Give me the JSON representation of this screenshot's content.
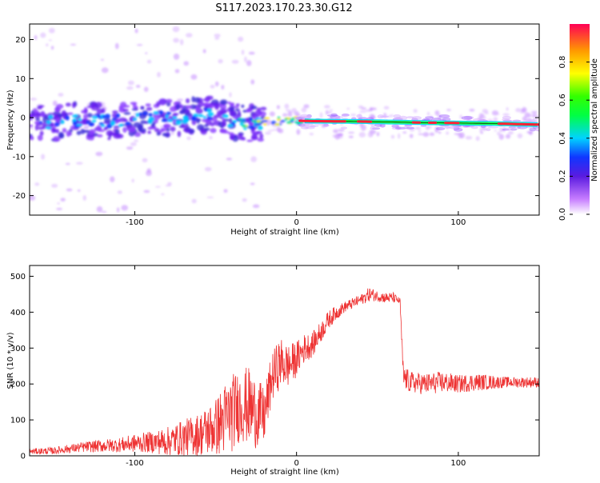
{
  "title": "S117.2023.170.23.30.G12",
  "chart_data": [
    {
      "type": "heatmap",
      "xlabel": "Height of straight line (km)",
      "ylabel": "Frequency (Hz)",
      "xlim": [
        -165,
        150
      ],
      "ylim": [
        -25,
        24
      ],
      "xticks": [
        "-100",
        "0",
        "100"
      ],
      "yticks": [
        "-20",
        "-10",
        "0",
        "10",
        "20"
      ],
      "colorbar": {
        "label": "Normalized spectral amplitude",
        "ticks": [
          "0.0",
          "0.2",
          "0.4",
          "0.6",
          "0.8"
        ],
        "range": [
          0,
          1
        ]
      },
      "ridge": [
        {
          "x": -160,
          "f": -1.5
        },
        {
          "x": -140,
          "f": -1
        },
        {
          "x": -120,
          "f": -1
        },
        {
          "x": -100,
          "f": -0.5
        },
        {
          "x": -80,
          "f": 0
        },
        {
          "x": -60,
          "f": 0.5
        },
        {
          "x": -48,
          "f": 1
        },
        {
          "x": -40,
          "f": -1
        },
        {
          "x": -30,
          "f": -1.5
        },
        {
          "x": -15,
          "f": -1
        },
        {
          "x": 0,
          "f": -0.8
        },
        {
          "x": 10,
          "f": -0.9
        },
        {
          "x": 40,
          "f": -1
        },
        {
          "x": 80,
          "f": -1.3
        },
        {
          "x": 120,
          "f": -1.5
        },
        {
          "x": 150,
          "f": -1.8
        }
      ],
      "grid": false
    },
    {
      "type": "line",
      "xlabel": "Height of straight line (km)",
      "ylabel": "SNR (10 * v/v)",
      "xlim": [
        -165,
        150
      ],
      "ylim": [
        0,
        530
      ],
      "xticks": [
        "-100",
        "0",
        "100"
      ],
      "yticks": [
        "0",
        "100",
        "200",
        "300",
        "400",
        "500"
      ],
      "series": [
        {
          "color": "#ee3333",
          "x": [
            -165,
            -150,
            -140,
            -130,
            -120,
            -110,
            -100,
            -90,
            -80,
            -70,
            -60,
            -50,
            -45,
            -40,
            -35,
            -30,
            -25,
            -20,
            -15,
            -10,
            -5,
            0,
            5,
            10,
            15,
            20,
            25,
            30,
            35,
            40,
            45,
            50,
            55,
            60,
            62,
            64,
            66,
            70,
            80,
            90,
            100,
            110,
            120,
            130,
            140,
            150
          ],
          "values": [
            12,
            14,
            20,
            25,
            28,
            30,
            35,
            38,
            40,
            50,
            60,
            80,
            100,
            120,
            140,
            140,
            120,
            110,
            220,
            260,
            250,
            270,
            300,
            310,
            345,
            380,
            400,
            415,
            425,
            435,
            450,
            445,
            440,
            440,
            435,
            430,
            220,
            205,
            200,
            205,
            200,
            205,
            205,
            205,
            205,
            205
          ],
          "spread": [
            8,
            10,
            12,
            15,
            18,
            20,
            25,
            30,
            40,
            50,
            60,
            80,
            100,
            110,
            100,
            110,
            100,
            80,
            70,
            70,
            60,
            50,
            40,
            35,
            30,
            25,
            20,
            15,
            15,
            15,
            20,
            15,
            15,
            15,
            10,
            10,
            35,
            30,
            30,
            30,
            25,
            25,
            20,
            15,
            15,
            15
          ]
        }
      ],
      "grid": false
    }
  ]
}
